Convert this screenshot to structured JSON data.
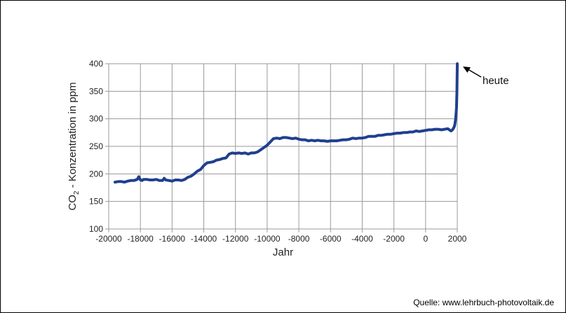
{
  "chart_data": {
    "type": "line",
    "title": "",
    "xlabel": "Jahr",
    "ylabel_main": "CO",
    "ylabel_sub": "2",
    "ylabel_rest": " - Konzentration in ppm",
    "xlim": [
      -20000,
      2000
    ],
    "ylim": [
      100,
      400
    ],
    "x_ticks": [
      -20000,
      -18000,
      -16000,
      -14000,
      -12000,
      -10000,
      -8000,
      -6000,
      -4000,
      -2000,
      0,
      2000
    ],
    "y_ticks": [
      100,
      150,
      200,
      250,
      300,
      350,
      400
    ],
    "grid": true,
    "line_color": "#1f3f8f",
    "annotation": {
      "text": "heute",
      "x": 2000,
      "y": 400
    },
    "series": [
      {
        "x": [
          -19600,
          -19400,
          -19200,
          -19000,
          -18800,
          -18600,
          -18400,
          -18200,
          -18100,
          -18000,
          -17900,
          -17800,
          -17600,
          -17400,
          -17200,
          -17000,
          -16800,
          -16600,
          -16500,
          -16400,
          -16200,
          -16000,
          -15800,
          -15600,
          -15400,
          -15200,
          -15000,
          -14800,
          -14600,
          -14400,
          -14200,
          -14000,
          -13800,
          -13600,
          -13400,
          -13200,
          -13000,
          -12800,
          -12600,
          -12400,
          -12200,
          -12000,
          -11800,
          -11600,
          -11400,
          -11200,
          -11000,
          -10800,
          -10600,
          -10400,
          -10200,
          -10000,
          -9800,
          -9600,
          -9400,
          -9200,
          -9000,
          -8800,
          -8600,
          -8400,
          -8200,
          -8000,
          -7800,
          -7600,
          -7400,
          -7200,
          -7000,
          -6800,
          -6600,
          -6400,
          -6200,
          -6000,
          -5800,
          -5600,
          -5400,
          -5200,
          -5000,
          -4800,
          -4600,
          -4400,
          -4200,
          -4000,
          -3800,
          -3600,
          -3400,
          -3200,
          -3000,
          -2800,
          -2600,
          -2400,
          -2200,
          -2000,
          -1800,
          -1600,
          -1400,
          -1200,
          -1000,
          -800,
          -600,
          -400,
          -200,
          0,
          200,
          400,
          600,
          800,
          1000,
          1200,
          1400,
          1600,
          1700,
          1800,
          1850,
          1900,
          1950,
          1980,
          2000
        ],
        "y": [
          185,
          186,
          186,
          185,
          187,
          188,
          188,
          190,
          195,
          189,
          188,
          190,
          190,
          189,
          189,
          190,
          188,
          188,
          192,
          189,
          188,
          187,
          189,
          189,
          188,
          190,
          194,
          196,
          200,
          205,
          208,
          215,
          220,
          221,
          222,
          225,
          226,
          228,
          229,
          236,
          238,
          237,
          238,
          237,
          238,
          236,
          238,
          238,
          240,
          244,
          248,
          252,
          258,
          264,
          265,
          264,
          266,
          266,
          265,
          264,
          265,
          263,
          262,
          262,
          260,
          261,
          260,
          261,
          260,
          260,
          259,
          260,
          260,
          260,
          261,
          262,
          262,
          263,
          265,
          264,
          265,
          265,
          266,
          268,
          268,
          268,
          270,
          270,
          271,
          272,
          272,
          273,
          274,
          274,
          275,
          275,
          276,
          276,
          278,
          277,
          278,
          279,
          280,
          280,
          281,
          281,
          280,
          281,
          282,
          278,
          280,
          285,
          290,
          300,
          320,
          350,
          400
        ]
      }
    ]
  },
  "footer": {
    "source_text": "Quelle: www.lehrbuch-photovoltaik.de"
  }
}
